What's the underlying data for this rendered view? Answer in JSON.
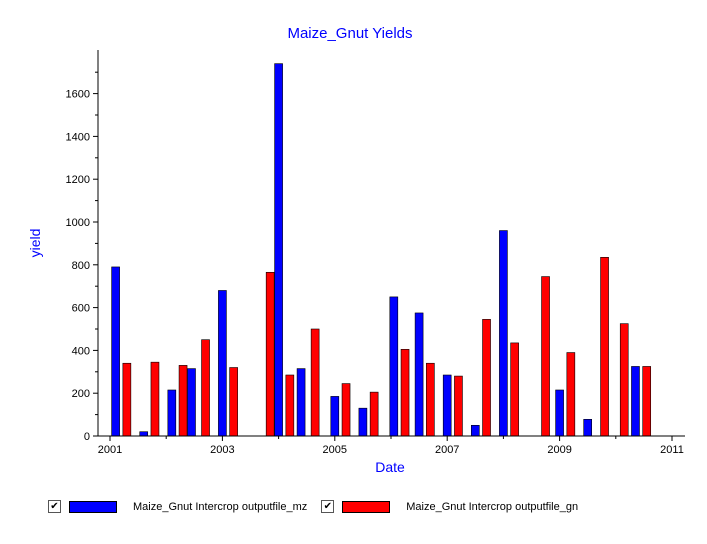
{
  "chart_data": {
    "type": "bar",
    "title": "Maize_Gnut Yields",
    "xlabel": "Date",
    "ylabel": "yield",
    "xlim": [
      2001,
      2011
    ],
    "ylim": [
      0,
      1750
    ],
    "xticks": [
      "2001",
      "2003",
      "2005",
      "2007",
      "2009",
      "2011"
    ],
    "yticks": [
      "0",
      "200",
      "400",
      "600",
      "800",
      "1000",
      "1200",
      "1400",
      "1600"
    ],
    "legend_position": "bottom",
    "series": [
      {
        "name": "Maize_Gnut Intercrop outputfile_mz",
        "color": "#0000ff",
        "points": [
          {
            "x": 2001.1,
            "y": 790
          },
          {
            "x": 2001.6,
            "y": 20
          },
          {
            "x": 2002.1,
            "y": 215
          },
          {
            "x": 2002.45,
            "y": 315
          },
          {
            "x": 2003.0,
            "y": 680
          },
          {
            "x": 2004.0,
            "y": 1740
          },
          {
            "x": 2004.4,
            "y": 315
          },
          {
            "x": 2005.0,
            "y": 185
          },
          {
            "x": 2005.5,
            "y": 130
          },
          {
            "x": 2006.05,
            "y": 650
          },
          {
            "x": 2006.5,
            "y": 575
          },
          {
            "x": 2007.0,
            "y": 285
          },
          {
            "x": 2007.5,
            "y": 50
          },
          {
            "x": 2008.0,
            "y": 960
          },
          {
            "x": 2009.0,
            "y": 215
          },
          {
            "x": 2009.5,
            "y": 78
          },
          {
            "x": 2010.35,
            "y": 325
          }
        ]
      },
      {
        "name": "Maize_Gnut Intercrop outputfile_gn",
        "color": "#ff0000",
        "points": [
          {
            "x": 2001.3,
            "y": 340
          },
          {
            "x": 2001.8,
            "y": 345
          },
          {
            "x": 2002.3,
            "y": 330
          },
          {
            "x": 2002.7,
            "y": 450
          },
          {
            "x": 2003.2,
            "y": 320
          },
          {
            "x": 2003.85,
            "y": 765
          },
          {
            "x": 2004.2,
            "y": 285
          },
          {
            "x": 2004.65,
            "y": 500
          },
          {
            "x": 2005.2,
            "y": 245
          },
          {
            "x": 2005.7,
            "y": 205
          },
          {
            "x": 2006.25,
            "y": 405
          },
          {
            "x": 2006.7,
            "y": 340
          },
          {
            "x": 2007.2,
            "y": 280
          },
          {
            "x": 2007.7,
            "y": 545
          },
          {
            "x": 2008.2,
            "y": 435
          },
          {
            "x": 2008.75,
            "y": 745
          },
          {
            "x": 2009.2,
            "y": 390
          },
          {
            "x": 2009.8,
            "y": 835
          },
          {
            "x": 2010.15,
            "y": 525
          },
          {
            "x": 2010.55,
            "y": 325
          }
        ]
      }
    ]
  },
  "legend": {
    "items": [
      {
        "label": "Maize_Gnut Intercrop outputfile_mz",
        "checked": "✔",
        "color": "#0000ff"
      },
      {
        "label": "Maize_Gnut Intercrop outputfile_gn",
        "checked": "✔",
        "color": "#ff0000"
      }
    ]
  }
}
